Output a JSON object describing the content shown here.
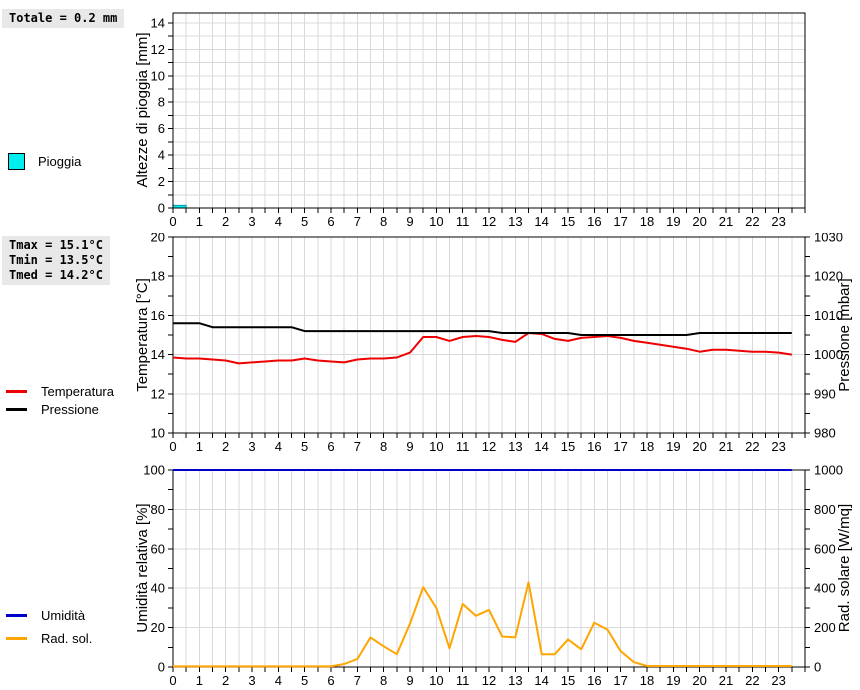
{
  "style": {
    "grid_color": "#d9d9d9",
    "axis_color": "#000000",
    "statbox_background": "#e8e8e8",
    "rain_color": "#00eeee",
    "temperature_color": "#ee0000",
    "pressure_color": "#000000",
    "humidity_color": "#0000cd",
    "solar_color": "#ffa500"
  },
  "chart_data": [
    {
      "type": "bar",
      "ylabel": "Altezze di pioggia [mm]",
      "series_name": "Pioggia",
      "color": "#00eeee",
      "total_label": "Totale = 0.2 mm",
      "xlim": [
        0,
        24
      ],
      "x_label_step": 1,
      "x_minor_step": 0.5,
      "ylim": [
        0,
        14.75
      ],
      "y_label_max": 14,
      "y_label_step": 2,
      "y_minor_step": 1,
      "y_grid_step": 1,
      "grid": true,
      "legend_position": "left-outside",
      "bars": [
        {
          "x": 0,
          "w": 0.5,
          "h": 0.2
        }
      ]
    },
    {
      "type": "line",
      "ylabel_left": "Temperatura [°C]",
      "ylabel_right": "Pressione [mbar]",
      "stats_lines": [
        "Tmax = 15.1°C",
        "Tmin = 13.5°C",
        "Tmed = 14.2°C"
      ],
      "xlim": [
        0,
        24
      ],
      "x_label_step": 1,
      "x_minor_step": 0.5,
      "ylim_left": [
        10,
        20
      ],
      "y_label_step": 2,
      "y_minor_step": 1,
      "y_grid_step": 2,
      "ylim_right": [
        980,
        1030
      ],
      "y_right_label_step": 10,
      "y_right_minor_step": 5,
      "grid": true,
      "legend_position": "left-outside",
      "x_hours": [
        0,
        0.5,
        1,
        1.5,
        2,
        2.5,
        3,
        3.5,
        4,
        4.5,
        5,
        5.5,
        6,
        6.5,
        7,
        7.5,
        8,
        8.5,
        9,
        9.5,
        10,
        10.5,
        11,
        11.5,
        12,
        12.5,
        13,
        13.5,
        14,
        14.5,
        15,
        15.5,
        16,
        16.5,
        17,
        17.5,
        18,
        18.5,
        19,
        19.5,
        20,
        20.5,
        21,
        21.5,
        22,
        22.5,
        23,
        23.5
      ],
      "series": [
        {
          "name": "Temperatura",
          "axis": "left",
          "color": "#ee0000",
          "values": [
            13.85,
            13.8,
            13.8,
            13.75,
            13.7,
            13.55,
            13.6,
            13.65,
            13.7,
            13.7,
            13.8,
            13.7,
            13.65,
            13.6,
            13.75,
            13.8,
            13.8,
            13.85,
            14.1,
            14.9,
            14.9,
            14.7,
            14.9,
            14.95,
            14.9,
            14.75,
            14.65,
            15.1,
            15.05,
            14.8,
            14.7,
            14.85,
            14.9,
            14.95,
            14.85,
            14.7,
            14.6,
            14.5,
            14.4,
            14.3,
            14.15,
            14.25,
            14.25,
            14.2,
            14.15,
            14.15,
            14.1,
            14.0
          ]
        },
        {
          "name": "Pressione",
          "axis": "right",
          "color": "#000000",
          "values": [
            1008,
            1008,
            1008,
            1007,
            1007,
            1007,
            1007,
            1007,
            1007,
            1007,
            1006,
            1006,
            1006,
            1006,
            1006,
            1006,
            1006,
            1006,
            1006,
            1006,
            1006,
            1006,
            1006,
            1006,
            1006,
            1005.5,
            1005.5,
            1005.5,
            1005.5,
            1005.5,
            1005.5,
            1005,
            1005,
            1005,
            1005,
            1005,
            1005,
            1005,
            1005,
            1005,
            1005.5,
            1005.5,
            1005.5,
            1005.5,
            1005.5,
            1005.5,
            1005.5,
            1005.5
          ]
        }
      ]
    },
    {
      "type": "line",
      "ylabel_left": "Umidità relativa [%]",
      "ylabel_right": "Rad. solare [W/mq]",
      "xlim": [
        0,
        24
      ],
      "x_label_step": 1,
      "x_minor_step": 0.5,
      "ylim_left": [
        0,
        100
      ],
      "y_label_step": 20,
      "y_minor_step": 10,
      "y_grid_step": 20,
      "ylim_right": [
        0,
        1000
      ],
      "y_right_label_step": 200,
      "y_right_minor_step": 100,
      "grid": true,
      "legend_position": "left-outside",
      "x_hours": [
        0,
        0.5,
        1,
        1.5,
        2,
        2.5,
        3,
        3.5,
        4,
        4.5,
        5,
        5.5,
        6,
        6.5,
        7,
        7.5,
        8,
        8.5,
        9,
        9.5,
        10,
        10.5,
        11,
        11.5,
        12,
        12.5,
        13,
        13.5,
        14,
        14.5,
        15,
        15.5,
        16,
        16.5,
        17,
        17.5,
        18,
        18.5,
        19,
        19.5,
        20,
        20.5,
        21,
        21.5,
        22,
        22.5,
        23,
        23.5
      ],
      "series": [
        {
          "name": "Umidità",
          "axis": "left",
          "color": "#0000cd",
          "values": [
            100,
            100,
            100,
            100,
            100,
            100,
            100,
            100,
            100,
            100,
            100,
            100,
            100,
            100,
            100,
            100,
            100,
            100,
            100,
            100,
            100,
            100,
            100,
            100,
            100,
            100,
            100,
            100,
            100,
            100,
            100,
            100,
            100,
            100,
            100,
            100,
            100,
            100,
            100,
            100,
            100,
            100,
            100,
            100,
            100,
            100,
            100,
            100
          ]
        },
        {
          "name": "Rad. sol.",
          "axis": "right",
          "color": "#ffa500",
          "values": [
            3,
            3,
            3,
            3,
            3,
            3,
            3,
            3,
            3,
            3,
            3,
            3,
            3,
            15,
            40,
            150,
            105,
            65,
            220,
            405,
            300,
            95,
            320,
            260,
            290,
            155,
            150,
            430,
            65,
            65,
            140,
            90,
            225,
            190,
            80,
            25,
            5,
            5,
            5,
            5,
            5,
            5,
            5,
            5,
            5,
            5,
            5,
            5
          ]
        }
      ]
    }
  ]
}
